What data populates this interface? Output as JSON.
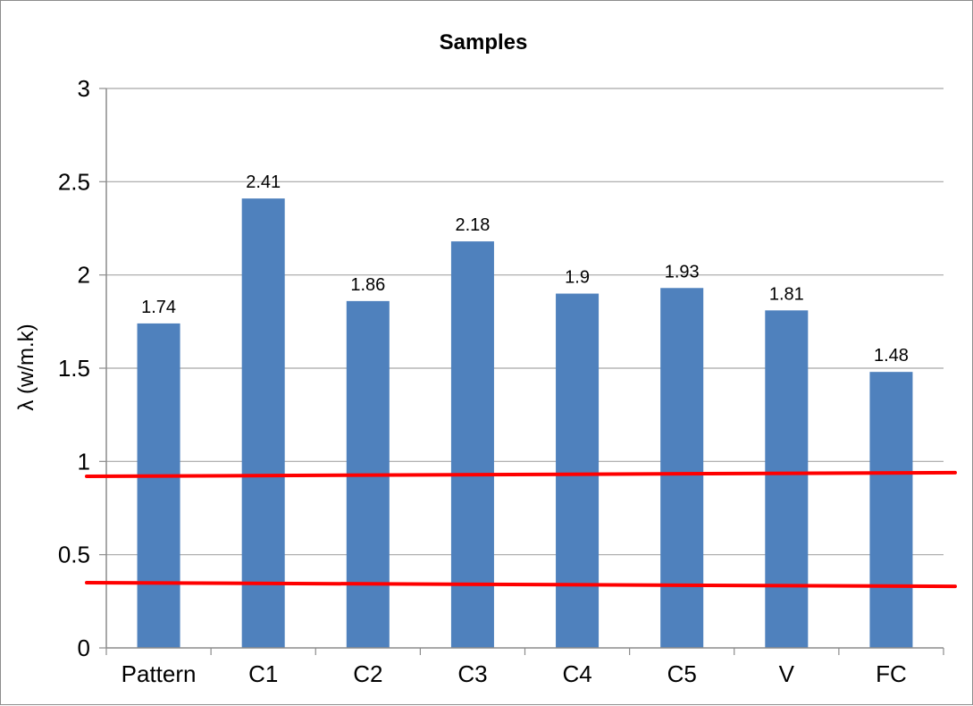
{
  "chart_data": {
    "type": "bar",
    "title": "Samples",
    "xlabel": "",
    "ylabel": "λ (w/m.k)",
    "categories": [
      "Pattern",
      "C1",
      "C2",
      "C3",
      "C4",
      "C5",
      "V",
      "FC"
    ],
    "values": [
      1.74,
      2.41,
      1.86,
      2.18,
      1.9,
      1.93,
      1.81,
      1.48
    ],
    "value_labels": [
      "1.74",
      "2.41",
      "1.86",
      "2.18",
      "1.9",
      "1.93",
      "1.81",
      "1.48"
    ],
    "ylim": [
      0,
      3
    ],
    "yticks": [
      0,
      0.5,
      1,
      1.5,
      2,
      2.5,
      3
    ],
    "ytick_labels": [
      "0",
      "0.5",
      "1",
      "1.5",
      "2",
      "2.5",
      "3"
    ],
    "grid": true,
    "legend": "none",
    "bar_color": "#4F81BD",
    "reference_lines": [
      {
        "y_start": 0.92,
        "y_end": 0.94,
        "color": "#FF0000"
      },
      {
        "y_start": 0.35,
        "y_end": 0.33,
        "color": "#FF0000"
      }
    ]
  }
}
